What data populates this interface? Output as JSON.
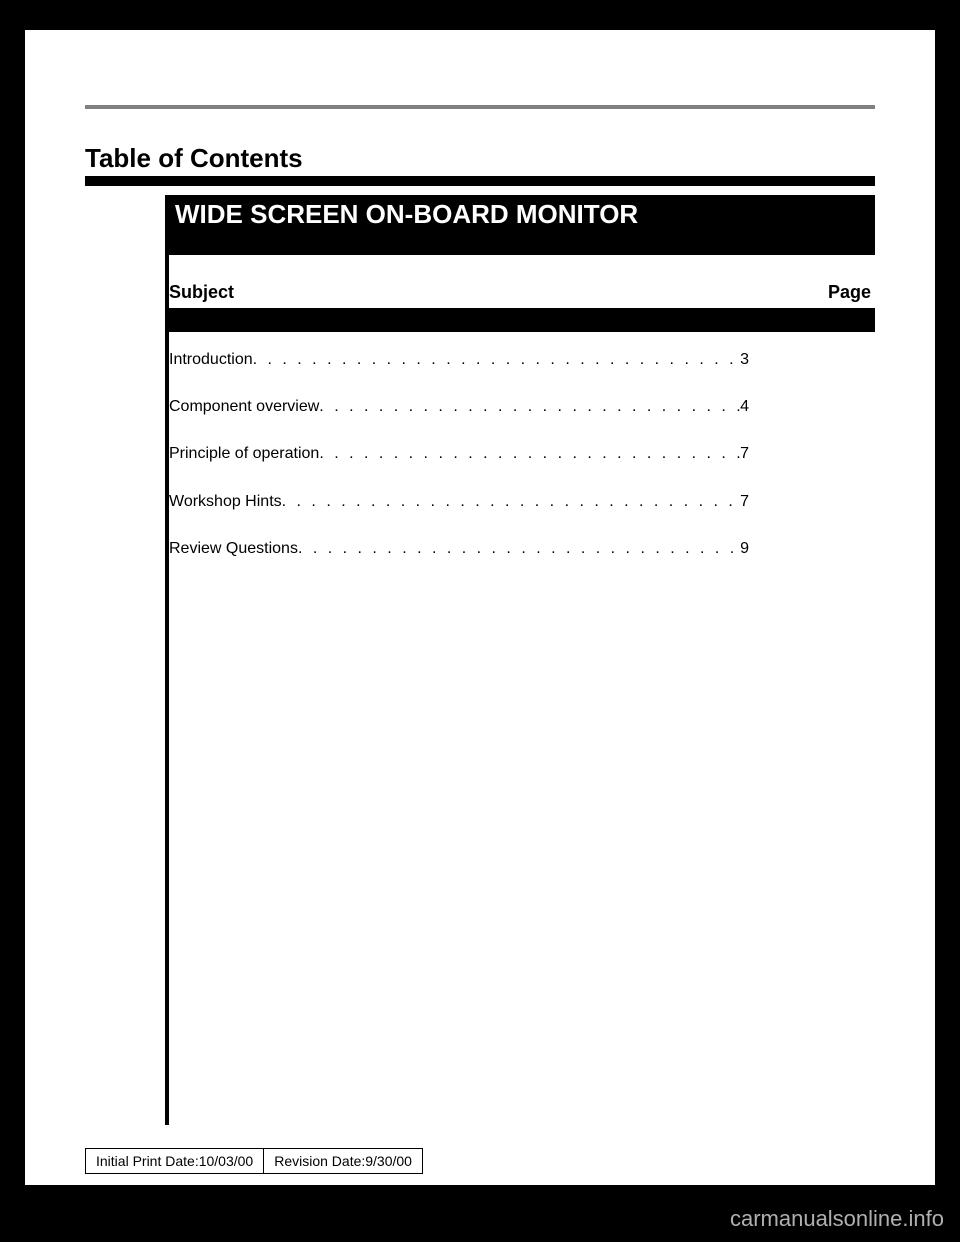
{
  "header": {
    "toc_title": "Table of Contents",
    "main_title": "WIDE SCREEN ON-BOARD MONITOR"
  },
  "column_headers": {
    "subject": "Subject",
    "page": "Page"
  },
  "toc": {
    "entries": [
      {
        "label": "Introduction",
        "page": "3"
      },
      {
        "label": "Component overview",
        "page": "4"
      },
      {
        "label": "Principle of operation",
        "page": "7"
      },
      {
        "label": "Workshop Hints",
        "page": "7"
      },
      {
        "label": "Review Questions",
        "page": "9"
      }
    ]
  },
  "footer": {
    "initial_print": "Initial Print Date:10/03/00",
    "revision": "Revision Date:9/30/00"
  },
  "watermark": "carmanualsonline.info",
  "styling": {
    "page_bg": "#ffffff",
    "outer_bg": "#000000",
    "rule_color": "#808080",
    "bar_color": "#000000",
    "text_color": "#000000",
    "title_text_color": "#ffffff",
    "watermark_color": "#b0b0b0",
    "toc_title_fontsize": 26,
    "main_title_fontsize": 26,
    "header_fontsize": 18,
    "body_fontsize": 16,
    "footer_fontsize": 14,
    "watermark_fontsize": 22
  }
}
